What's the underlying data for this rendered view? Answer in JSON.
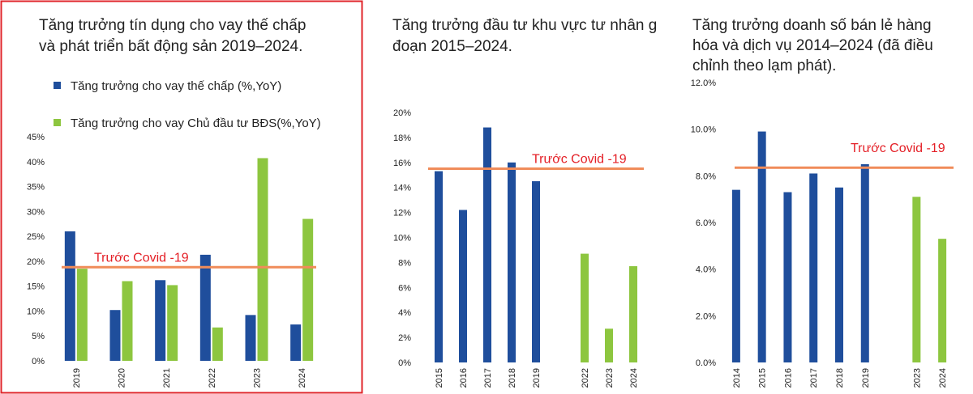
{
  "chart_data": [
    {
      "type": "bar",
      "title_lines": [
        "Tăng trưởng tín dụng cho vay thế chấp",
        "và phát triển bất động sản 2019–2024."
      ],
      "categories": [
        "2019",
        "2020",
        "2021",
        "2022",
        "2023",
        "2024"
      ],
      "series": [
        {
          "name": "Tăng trưởng cho vay thế chấp (%,YoY)",
          "color": "#1f4e9c",
          "values": [
            26,
            10.2,
            16.2,
            21.3,
            9.2,
            7.3
          ]
        },
        {
          "name": "Tăng trưởng cho vay Chủ đầu tư BĐS(%,YoY)",
          "color": "#8dc63f",
          "values": [
            18.5,
            16,
            15.2,
            6.7,
            40.7,
            28.5
          ]
        }
      ],
      "ylim": [
        0,
        45
      ],
      "yticks": [
        "0%",
        "5%",
        "10%",
        "15%",
        "20%",
        "25%",
        "30%",
        "35%",
        "40%",
        "45%"
      ],
      "reference_line": {
        "value": 18.8,
        "label": "Trước Covid -19",
        "color": "#f08c5a"
      },
      "legend_position": "top-left",
      "border_color": "#e0252b"
    },
    {
      "type": "bar",
      "title_lines": [
        "Tăng trưởng đầu tư khu vực tư nhân giai",
        "đoạn 2015–2024."
      ],
      "categories": [
        "2015",
        "2016",
        "2017",
        "2018",
        "2019",
        "",
        "2022",
        "2023",
        "2024"
      ],
      "series": [
        {
          "name": "",
          "values": [
            15.3,
            12.2,
            18.8,
            16,
            14.5,
            null,
            8.7,
            2.7,
            7.7
          ],
          "colors": [
            "#1f4e9c",
            "#1f4e9c",
            "#1f4e9c",
            "#1f4e9c",
            "#1f4e9c",
            null,
            "#8dc63f",
            "#8dc63f",
            "#8dc63f"
          ]
        }
      ],
      "ylim": [
        0,
        20
      ],
      "yticks": [
        "0%",
        "2%",
        "4%",
        "6%",
        "8%",
        "10%",
        "12%",
        "14%",
        "16%",
        "18%",
        "20%"
      ],
      "reference_line": {
        "value": 15.5,
        "label": "Trước Covid -19",
        "color": "#f08c5a"
      }
    },
    {
      "type": "bar",
      "title_lines": [
        "Tăng trưởng doanh số bán lẻ hàng",
        "hóa và dịch vụ 2014–2024 (đã điều",
        "chỉnh theo lạm phát)."
      ],
      "categories": [
        "2014",
        "2015",
        "2016",
        "2017",
        "2018",
        "2019",
        "",
        "2023",
        "2024"
      ],
      "series": [
        {
          "name": "",
          "values": [
            7.4,
            9.9,
            7.3,
            8.1,
            7.5,
            8.5,
            null,
            7.1,
            5.3
          ],
          "colors": [
            "#1f4e9c",
            "#1f4e9c",
            "#1f4e9c",
            "#1f4e9c",
            "#1f4e9c",
            "#1f4e9c",
            null,
            "#8dc63f",
            "#8dc63f"
          ]
        }
      ],
      "ylim": [
        0,
        12
      ],
      "yticks": [
        "0.0%",
        "2.0%",
        "4.0%",
        "6.0%",
        "8.0%",
        "10.0%",
        "12.0%"
      ],
      "reference_line": {
        "value": 8.35,
        "label": "Trước Covid -19",
        "color": "#f08c5a"
      }
    }
  ]
}
